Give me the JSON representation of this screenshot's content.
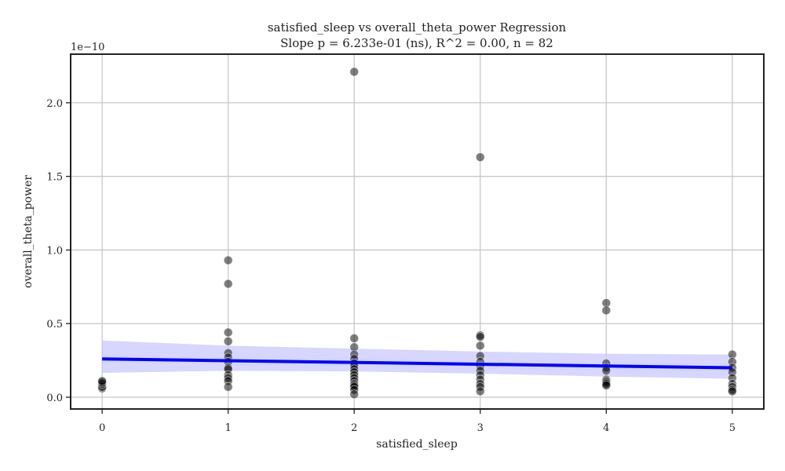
{
  "chart_data": {
    "type": "scatter",
    "title": "satisfied_sleep vs overall_theta_power Regression",
    "subtitle": "Slope p = 6.233e-01 (ns), R^2 = 0.00, n = 82",
    "xlabel": "satisfied_sleep",
    "ylabel": "overall_theta_power",
    "y_offset_label": "1e−10",
    "xlim": [
      -0.25,
      5.25
    ],
    "ylim": [
      -0.08,
      2.33
    ],
    "x_ticks": [
      0,
      1,
      2,
      3,
      4,
      5
    ],
    "x_tick_labels": [
      "0",
      "1",
      "2",
      "3",
      "4",
      "5"
    ],
    "y_ticks": [
      0.0,
      0.5,
      1.0,
      1.5,
      2.0
    ],
    "y_tick_labels": [
      "0.0",
      "0.5",
      "1.0",
      "1.5",
      "2.0"
    ],
    "grid": true,
    "colors": {
      "points": "#000000",
      "regression_line": "#0000ff",
      "confidence_band": "#c8c8ff"
    },
    "regression_line": {
      "x": [
        0,
        5
      ],
      "y": [
        0.26,
        0.2
      ]
    },
    "confidence_band": {
      "x": [
        0,
        1,
        2,
        3,
        4,
        5
      ],
      "upper": [
        0.385,
        0.35,
        0.33,
        0.31,
        0.295,
        0.29
      ],
      "lower": [
        0.165,
        0.18,
        0.175,
        0.16,
        0.14,
        0.125
      ]
    },
    "points": [
      {
        "x": 0,
        "y": 0.06
      },
      {
        "x": 0,
        "y": 0.07
      },
      {
        "x": 0,
        "y": 0.09
      },
      {
        "x": 0,
        "y": 0.1
      },
      {
        "x": 0,
        "y": 0.11
      },
      {
        "x": 1,
        "y": 0.93
      },
      {
        "x": 1,
        "y": 0.77
      },
      {
        "x": 1,
        "y": 0.44
      },
      {
        "x": 1,
        "y": 0.38
      },
      {
        "x": 1,
        "y": 0.3
      },
      {
        "x": 1,
        "y": 0.27
      },
      {
        "x": 1,
        "y": 0.24
      },
      {
        "x": 1,
        "y": 0.2
      },
      {
        "x": 1,
        "y": 0.19
      },
      {
        "x": 1,
        "y": 0.15
      },
      {
        "x": 1,
        "y": 0.13
      },
      {
        "x": 1,
        "y": 0.11
      },
      {
        "x": 1,
        "y": 0.07
      },
      {
        "x": 2,
        "y": 2.21
      },
      {
        "x": 2,
        "y": 0.4
      },
      {
        "x": 2,
        "y": 0.34
      },
      {
        "x": 2,
        "y": 0.29
      },
      {
        "x": 2,
        "y": 0.26
      },
      {
        "x": 2,
        "y": 0.23
      },
      {
        "x": 2,
        "y": 0.21
      },
      {
        "x": 2,
        "y": 0.19
      },
      {
        "x": 2,
        "y": 0.17
      },
      {
        "x": 2,
        "y": 0.15
      },
      {
        "x": 2,
        "y": 0.13
      },
      {
        "x": 2,
        "y": 0.11
      },
      {
        "x": 2,
        "y": 0.09
      },
      {
        "x": 2,
        "y": 0.08
      },
      {
        "x": 2,
        "y": 0.07
      },
      {
        "x": 2,
        "y": 0.05
      },
      {
        "x": 2,
        "y": 0.02
      },
      {
        "x": 3,
        "y": 1.63
      },
      {
        "x": 3,
        "y": 0.42
      },
      {
        "x": 3,
        "y": 0.41
      },
      {
        "x": 3,
        "y": 0.35
      },
      {
        "x": 3,
        "y": 0.28
      },
      {
        "x": 3,
        "y": 0.24
      },
      {
        "x": 3,
        "y": 0.21
      },
      {
        "x": 3,
        "y": 0.18
      },
      {
        "x": 3,
        "y": 0.15
      },
      {
        "x": 3,
        "y": 0.12
      },
      {
        "x": 3,
        "y": 0.09
      },
      {
        "x": 3,
        "y": 0.07
      },
      {
        "x": 3,
        "y": 0.04
      },
      {
        "x": 4,
        "y": 0.64
      },
      {
        "x": 4,
        "y": 0.59
      },
      {
        "x": 4,
        "y": 0.23
      },
      {
        "x": 4,
        "y": 0.2
      },
      {
        "x": 4,
        "y": 0.18
      },
      {
        "x": 4,
        "y": 0.12
      },
      {
        "x": 4,
        "y": 0.11
      },
      {
        "x": 4,
        "y": 0.1
      },
      {
        "x": 4,
        "y": 0.09
      },
      {
        "x": 4,
        "y": 0.08
      },
      {
        "x": 5,
        "y": 0.29
      },
      {
        "x": 5,
        "y": 0.24
      },
      {
        "x": 5,
        "y": 0.2
      },
      {
        "x": 5,
        "y": 0.17
      },
      {
        "x": 5,
        "y": 0.13
      },
      {
        "x": 5,
        "y": 0.09
      },
      {
        "x": 5,
        "y": 0.07
      },
      {
        "x": 5,
        "y": 0.05
      },
      {
        "x": 5,
        "y": 0.04
      }
    ]
  }
}
